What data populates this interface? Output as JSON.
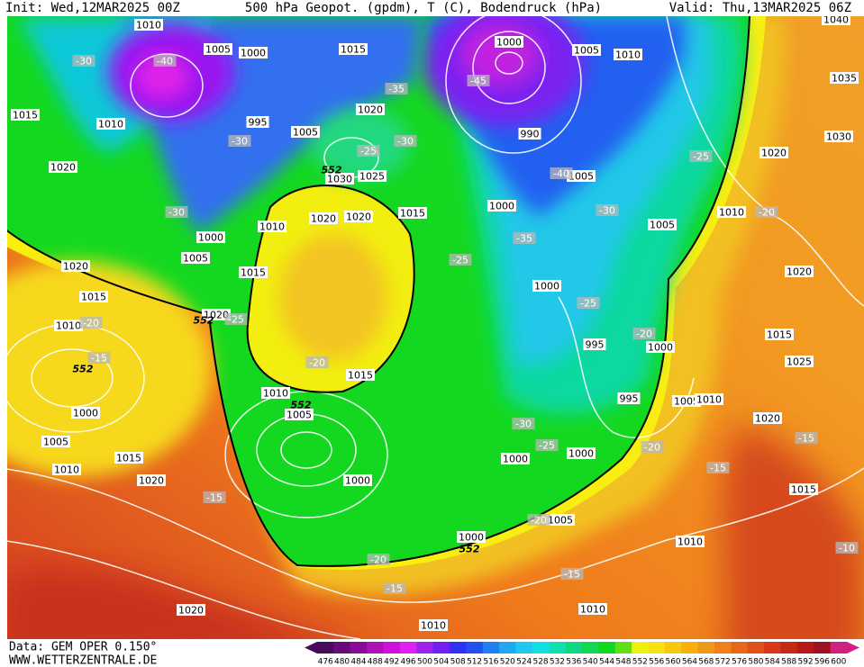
{
  "header": {
    "init": "Init: Wed,12MAR2025 00Z",
    "title": "500 hPa Geopot. (gpdm), T (C), Bodendruck (hPa)",
    "valid": "Valid: Thu,13MAR2025 06Z"
  },
  "footer": {
    "source": "Data: GEM OPER 0.150°",
    "website": "WWW.WETTERZENTRALE.DE"
  },
  "colorbar": {
    "labels": [
      "476",
      "480",
      "484",
      "488",
      "492",
      "496",
      "500",
      "504",
      "508",
      "512",
      "516",
      "520",
      "524",
      "528",
      "532",
      "536",
      "540",
      "544",
      "548",
      "552",
      "556",
      "560",
      "564",
      "568",
      "572",
      "576",
      "580",
      "584",
      "588",
      "592",
      "596",
      "600"
    ],
    "colors": [
      "#4a0a5a",
      "#6a0a7a",
      "#8a0a9a",
      "#b010b8",
      "#d010d8",
      "#e020f0",
      "#a020f0",
      "#7020f0",
      "#3030f0",
      "#2050f0",
      "#2080f0",
      "#20a8f0",
      "#20c8f0",
      "#10e0e0",
      "#10e0b0",
      "#10d880",
      "#10d850",
      "#10d820",
      "#60e010",
      "#f0f010",
      "#f8e010",
      "#f8c810",
      "#f8b010",
      "#f09818",
      "#f08018",
      "#e86818",
      "#e05018",
      "#d83818",
      "#c82818",
      "#b81818",
      "#a01020",
      "#d02080"
    ]
  },
  "map_labels": [
    "1010",
    "1005",
    "1000",
    "1015",
    "1000",
    "1005",
    "1010",
    "1040",
    "1035",
    "1030",
    "1020",
    "1010",
    "1005",
    "1015",
    "1010",
    "995",
    "1005",
    "1020",
    "1020",
    "1030",
    "1025",
    "990",
    "1005",
    "1000",
    "1015",
    "1020",
    "1020",
    "1010",
    "1000",
    "1005",
    "1020",
    "1015",
    "1015",
    "1000",
    "1020",
    "1010",
    "1020",
    "995",
    "1000",
    "1015",
    "1025",
    "1015",
    "1010",
    "995",
    "1005",
    "1010",
    "1005",
    "1000",
    "1020",
    "1005",
    "1000",
    "1000",
    "1015",
    "1010",
    "1020",
    "1000",
    "1005",
    "1000",
    "1010",
    "1015",
    "1010",
    "1020",
    "1010",
    "-30",
    "-40",
    "-35",
    "-45",
    "-30",
    "-25",
    "-30",
    "-40",
    "-25",
    "-30",
    "-30",
    "-20",
    "-35",
    "-25",
    "-25",
    "-20",
    "-25",
    "-15",
    "-20",
    "-20",
    "-15",
    "-30",
    "-25",
    "-20",
    "-15",
    "-15",
    "-20",
    "-20",
    "-15",
    "-15",
    "-10",
    "552",
    "552",
    "552",
    "552",
    "552"
  ]
}
